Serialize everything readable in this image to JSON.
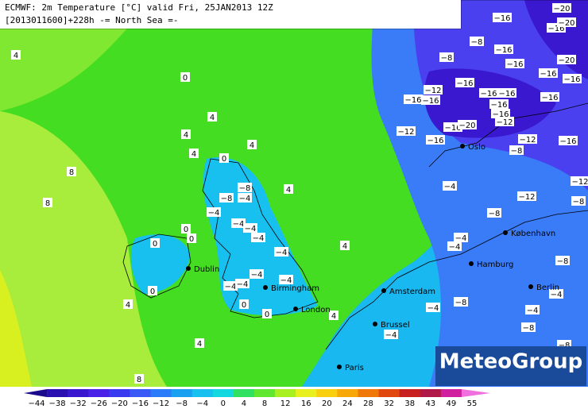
{
  "header": {
    "line1": "ECMWF: 2m Temperature [°C] valid Fri, 25JAN2013 12Z",
    "line2": "[2013011600]+228h  -= North Sea =-"
  },
  "cities": [
    "Oslo",
    "København",
    "Hamburg",
    "Amsterdam",
    "Berlin",
    "Birmingham",
    "London",
    "Dublin",
    "Brussel",
    "Paris"
  ],
  "temperature_labels": [
    "4",
    "0",
    "4",
    "4",
    "4",
    "4",
    "8",
    "8",
    "0",
    "4",
    "−8",
    "−4",
    "−8",
    "−4",
    "−4",
    "−4",
    "−4",
    "0",
    "0",
    "0",
    "−4",
    "4",
    "0",
    "−4",
    "−4",
    "−4",
    "−4",
    "0",
    "0",
    "4",
    "4",
    "4",
    "8",
    "−20",
    "−16",
    "−16",
    "−20",
    "−8",
    "−8",
    "−16",
    "−16",
    "−16",
    "−20",
    "−16",
    "−12",
    "−16",
    "−16",
    "−16",
    "−16",
    "−16",
    "−16",
    "−16",
    "−16",
    "−12",
    "−16",
    "−20",
    "−12",
    "−16",
    "−12",
    "−16",
    "−8",
    "−12",
    "−4",
    "−12",
    "−8",
    "−8",
    "−4",
    "−4",
    "−8",
    "−4",
    "−8",
    "−4",
    "−4",
    "−8",
    "−4",
    "−8"
  ],
  "colorbar": {
    "ticks": [
      "−44",
      "−38",
      "−32",
      "−26",
      "−20",
      "−16",
      "−12",
      "−8",
      "−4",
      "0",
      "4",
      "8",
      "12",
      "16",
      "20",
      "24",
      "28",
      "32",
      "38",
      "43",
      "49",
      "55"
    ],
    "colors": [
      "#1a0a8c",
      "#2a10b0",
      "#3a18d0",
      "#4a22e8",
      "#3a3af0",
      "#3a5af8",
      "#2a7cf8",
      "#1aa0f0",
      "#18c0f0",
      "#14d8e0",
      "#30e060",
      "#60e830",
      "#a8f020",
      "#e8f020",
      "#f8d010",
      "#f8a808",
      "#f07808",
      "#e04810",
      "#c82020",
      "#b01848",
      "#d020a0",
      "#f070e0"
    ]
  },
  "logo": "MeteoGroup"
}
